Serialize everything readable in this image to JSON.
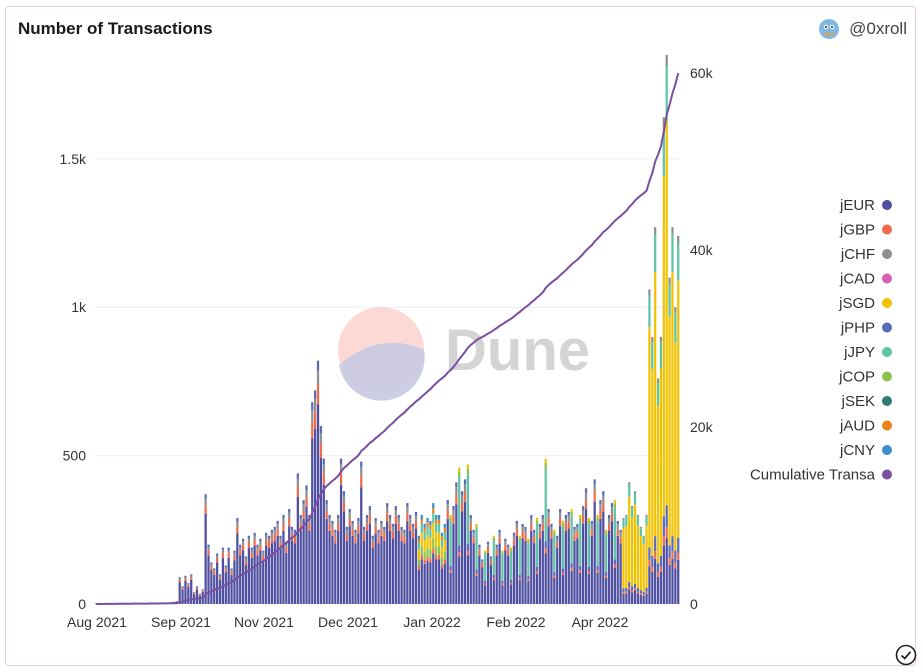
{
  "header": {
    "title": "Number of Transactions",
    "author": "@0xroll"
  },
  "watermark": "Dune",
  "colors": {
    "jEUR": "#4e4fa0",
    "jGBP": "#ef6b4e",
    "jCHF": "#8f8f8f",
    "jCAD": "#d760b5",
    "jSGD": "#f2c200",
    "jPHP": "#5b6ab9",
    "jJPY": "#5ec4a5",
    "jCOP": "#8bc34a",
    "jSEK": "#2e7d6e",
    "jAUD": "#e8841c",
    "jCNY": "#3a8fcc",
    "cumulative": "#7b4ea0"
  },
  "chart_data": {
    "type": "bar",
    "stacked": true,
    "title": "Number of Transactions",
    "x_tick_labels": [
      "Aug 2021",
      "Sep 2021",
      "Nov 2021",
      "Dec 2021",
      "Jan 2022",
      "Feb 2022",
      "Apr 2022"
    ],
    "y_left_ticks": [
      "0",
      "500",
      "1k",
      "1.5k"
    ],
    "y_left_range": [
      0,
      1850
    ],
    "y_right_ticks": [
      "0",
      "20k",
      "40k",
      "60k"
    ],
    "y_right_range": [
      0,
      60000
    ],
    "legend": [
      "jEUR",
      "jGBP",
      "jCHF",
      "jCAD",
      "jSGD",
      "jPHP",
      "jJPY",
      "jCOP",
      "jSEK",
      "jAUD",
      "jCNY",
      "Cumulative Transa"
    ],
    "legend_position": "right",
    "grid": true,
    "series_note": "Daily stacked bars per token (left axis) plus cumulative transactions line (right axis)",
    "daily_totals": [
      2,
      2,
      3,
      2,
      2,
      3,
      2,
      3,
      2,
      3,
      4,
      3,
      2,
      3,
      3,
      2,
      3,
      2,
      2,
      3,
      4,
      3,
      4,
      5,
      3,
      4,
      6,
      8,
      10,
      90,
      60,
      95,
      70,
      100,
      40,
      60,
      35,
      50,
      370,
      200,
      140,
      120,
      170,
      100,
      190,
      130,
      190,
      120,
      180,
      290,
      200,
      220,
      160,
      230,
      190,
      240,
      200,
      220,
      180,
      240,
      230,
      250,
      260,
      280,
      230,
      300,
      210,
      320,
      260,
      250,
      440,
      300,
      350,
      400,
      300,
      680,
      720,
      820,
      600,
      490,
      350,
      300,
      280,
      250,
      300,
      490,
      380,
      260,
      320,
      280,
      250,
      290,
      480,
      260,
      300,
      330,
      230,
      290,
      250,
      280,
      260,
      340,
      300,
      270,
      330,
      300,
      260,
      250,
      340,
      300,
      270,
      310,
      230,
      300,
      270,
      290,
      280,
      340,
      300,
      300,
      240,
      270,
      350,
      300,
      330,
      410,
      460,
      380,
      420,
      470,
      300,
      250,
      270,
      200,
      150,
      180,
      210,
      160,
      230,
      200,
      250,
      180,
      220,
      200,
      190,
      240,
      280,
      230,
      270,
      260,
      220,
      300,
      250,
      290,
      270,
      300,
      490,
      320,
      270,
      250,
      230,
      320,
      280,
      300,
      310,
      320,
      260,
      270,
      300,
      330,
      390,
      290,
      280,
      420,
      300,
      350,
      380,
      250,
      300,
      340,
      350,
      280,
      250,
      290,
      300,
      410,
      330,
      380,
      300,
      260,
      230,
      300,
      1060,
      900,
      1270,
      760,
      900,
      1640,
      1850,
      1100,
      1270,
      1000,
      1240
    ],
    "cumulative_endpoints": {
      "start": 0,
      "end": 60000
    }
  }
}
